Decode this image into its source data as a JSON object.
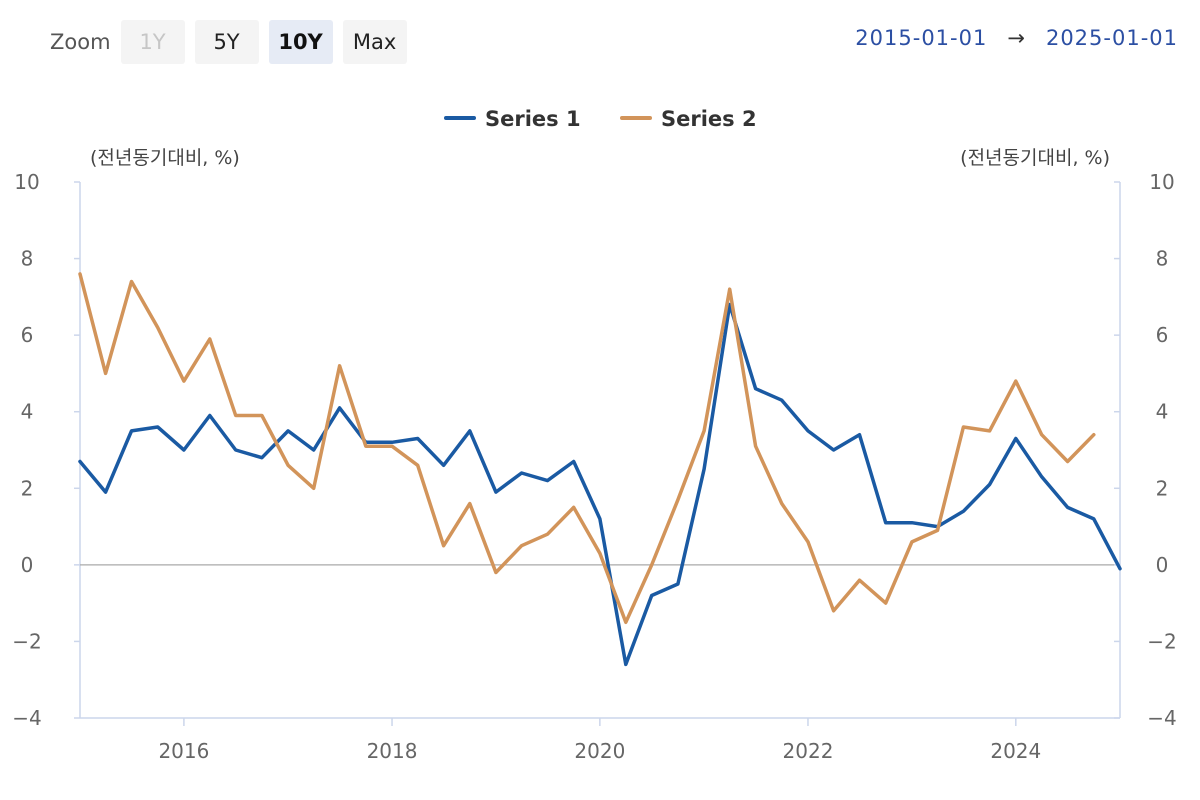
{
  "zoom": {
    "label": "Zoom",
    "buttons": [
      {
        "label": "1Y",
        "state": "disabled"
      },
      {
        "label": "5Y",
        "state": "normal"
      },
      {
        "label": "10Y",
        "state": "active"
      },
      {
        "label": "Max",
        "state": "normal"
      }
    ]
  },
  "range": {
    "start": "2015-01-01",
    "arrow": "→",
    "end": "2025-01-01"
  },
  "chart_data": {
    "type": "line",
    "left_axis_unit": "(전년동기대비, %)",
    "right_axis_unit": "(전년동기대비, %)",
    "ylim": [
      -4,
      10
    ],
    "y_ticks": [
      10,
      8,
      6,
      4,
      2,
      0,
      -2,
      -4
    ],
    "y_tick_labels": [
      "10",
      "8",
      "6",
      "4",
      "2",
      "0",
      "−2",
      "−4"
    ],
    "xlim": [
      "2015-01-01",
      "2025-01-01"
    ],
    "x_ticks": [
      2016,
      2018,
      2020,
      2022,
      2024
    ],
    "grid": false,
    "legend_position": "top-center",
    "series": [
      {
        "name": "Series 1",
        "color": "#1a5aa3",
        "x": [
          "2015-01",
          "2015-04",
          "2015-07",
          "2015-10",
          "2016-01",
          "2016-04",
          "2016-07",
          "2016-10",
          "2017-01",
          "2017-04",
          "2017-07",
          "2017-10",
          "2018-01",
          "2018-04",
          "2018-07",
          "2018-10",
          "2019-01",
          "2019-04",
          "2019-07",
          "2019-10",
          "2020-01",
          "2020-04",
          "2020-07",
          "2020-10",
          "2021-01",
          "2021-04",
          "2021-07",
          "2021-10",
          "2022-01",
          "2022-04",
          "2022-07",
          "2022-10",
          "2023-01",
          "2023-04",
          "2023-07",
          "2023-10",
          "2024-01",
          "2024-04",
          "2024-07",
          "2024-10",
          "2025-01"
        ],
        "values": [
          2.7,
          1.9,
          3.5,
          3.6,
          3.0,
          3.9,
          3.0,
          2.8,
          3.5,
          3.0,
          4.1,
          3.2,
          3.2,
          3.3,
          2.6,
          3.5,
          1.9,
          2.4,
          2.2,
          2.7,
          1.2,
          -2.6,
          -0.8,
          -0.5,
          2.5,
          6.8,
          4.6,
          4.3,
          3.5,
          3.0,
          3.4,
          1.1,
          1.1,
          1.0,
          1.4,
          2.1,
          3.3,
          2.3,
          1.5,
          1.2,
          -0.1
        ]
      },
      {
        "name": "Series 2",
        "color": "#d2945a",
        "x": [
          "2015-01",
          "2015-04",
          "2015-07",
          "2015-10",
          "2016-01",
          "2016-04",
          "2016-07",
          "2016-10",
          "2017-01",
          "2017-04",
          "2017-07",
          "2017-10",
          "2018-01",
          "2018-04",
          "2018-07",
          "2018-10",
          "2019-01",
          "2019-04",
          "2019-07",
          "2019-10",
          "2020-01",
          "2020-04",
          "2020-07",
          "2020-10",
          "2021-01",
          "2021-04",
          "2021-07",
          "2021-10",
          "2022-01",
          "2022-04",
          "2022-07",
          "2022-10",
          "2023-01",
          "2023-04",
          "2023-07",
          "2023-10",
          "2024-01",
          "2024-04",
          "2024-07",
          "2024-10"
        ],
        "values": [
          7.6,
          5.0,
          7.4,
          6.2,
          4.8,
          5.9,
          3.9,
          3.9,
          2.6,
          2.0,
          5.2,
          3.1,
          3.1,
          2.6,
          0.5,
          1.6,
          -0.2,
          0.5,
          0.8,
          1.5,
          0.3,
          -1.5,
          0.0,
          1.7,
          3.5,
          7.2,
          3.1,
          1.6,
          0.6,
          -1.2,
          -0.4,
          -1.0,
          0.6,
          0.9,
          3.6,
          3.5,
          4.8,
          3.4,
          2.7,
          3.4
        ]
      }
    ]
  }
}
